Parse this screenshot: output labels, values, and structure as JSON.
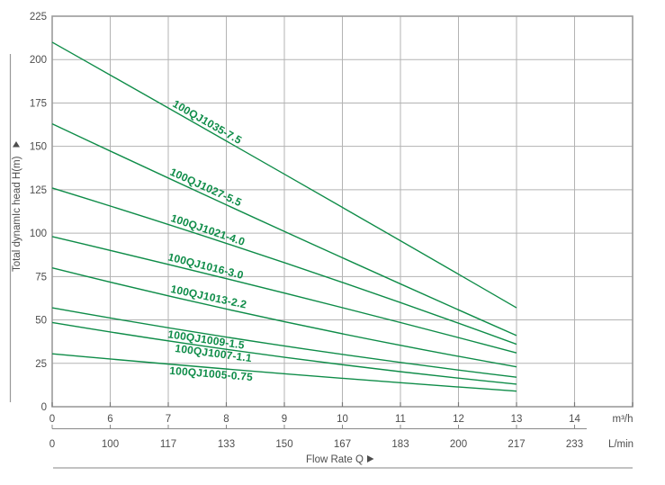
{
  "chart_data": {
    "type": "line",
    "title": "",
    "x_axis": {
      "label": "Flow Rate Q",
      "unit_primary": "m³/h",
      "unit_secondary": "L/min",
      "ticks_m3h": [
        "0",
        "6",
        "7",
        "8",
        "9",
        "10",
        "11",
        "12",
        "13",
        "14"
      ],
      "ticks_lmin": [
        "0",
        "100",
        "117",
        "133",
        "150",
        "167",
        "183",
        "200",
        "217",
        "233"
      ]
    },
    "y_axis": {
      "label": "Total dynamIc head H(m)",
      "ticks": [
        0,
        25,
        50,
        75,
        100,
        125,
        150,
        175,
        200,
        225
      ],
      "range": [
        0,
        225
      ]
    },
    "series": [
      {
        "name": "100QJ1035-7.5",
        "q_m3h": [
          0,
          9,
          13
        ],
        "head_m": [
          210,
          134,
          57
        ]
      },
      {
        "name": "100QJ1027-5.5",
        "q_m3h": [
          0,
          9,
          13
        ],
        "head_m": [
          163,
          101,
          41
        ]
      },
      {
        "name": "100QJ1021-4.0",
        "q_m3h": [
          0,
          9,
          13
        ],
        "head_m": [
          126,
          83,
          36
        ]
      },
      {
        "name": "100QJ1016-3.0",
        "q_m3h": [
          0,
          9,
          13
        ],
        "head_m": [
          98,
          65.5,
          31
        ]
      },
      {
        "name": "100QJ1013-2.2",
        "q_m3h": [
          0,
          9,
          13
        ],
        "head_m": [
          80,
          49,
          23
        ]
      },
      {
        "name": "100QJ1009-1.5",
        "q_m3h": [
          0,
          9,
          13
        ],
        "head_m": [
          57,
          35,
          17
        ]
      },
      {
        "name": "100QJ1007-1.1",
        "q_m3h": [
          0,
          9,
          13
        ],
        "head_m": [
          48.5,
          28.5,
          13
        ]
      },
      {
        "name": "100QJ1005-0.75",
        "q_m3h": [
          0,
          9,
          13
        ],
        "head_m": [
          30.5,
          19,
          9
        ]
      }
    ],
    "colors": {
      "curve": "#0e8c48",
      "grid": "#b3b3b3",
      "border": "#9b9b9b",
      "text": "#4d4d4d"
    },
    "legend_position": "on-curve-labels",
    "grid": true
  }
}
